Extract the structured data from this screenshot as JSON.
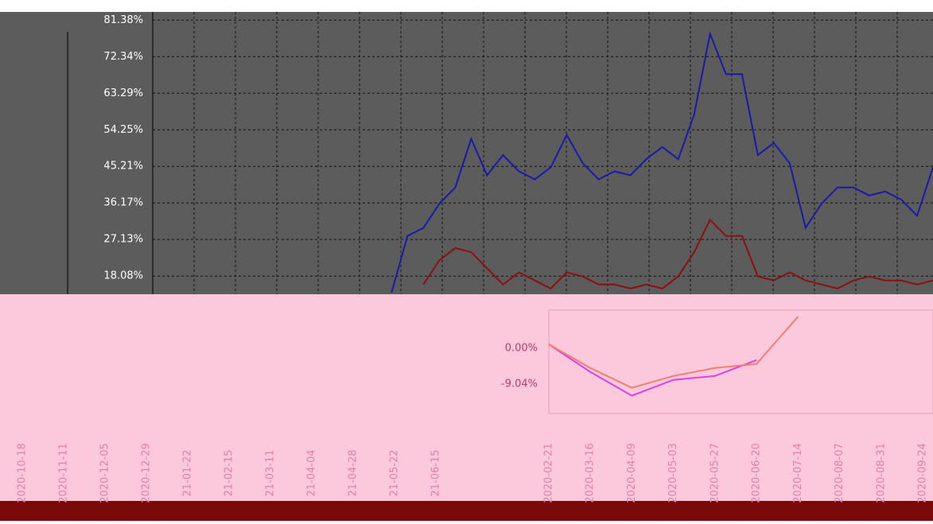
{
  "chart_data": [
    {
      "type": "line",
      "ylim": [
        13.6,
        83.4
      ],
      "yticks": [
        {
          "value": 81.38,
          "label": "81.38%"
        },
        {
          "value": 72.34,
          "label": "72.34%"
        },
        {
          "value": 63.29,
          "label": "63.29%"
        },
        {
          "value": 54.25,
          "label": "54.25%"
        },
        {
          "value": 45.21,
          "label": "45.21%"
        },
        {
          "value": 36.17,
          "label": "36.17%"
        },
        {
          "value": 27.13,
          "label": "27.13%"
        },
        {
          "value": 18.08,
          "label": "18.08%"
        }
      ],
      "grid": true,
      "series": [
        {
          "color": "#1a1aa8",
          "values": [
            null,
            null,
            null,
            null,
            null,
            null,
            null,
            null,
            null,
            null,
            null,
            null,
            null,
            null,
            null,
            14,
            28,
            30,
            36,
            40,
            52,
            43,
            48,
            44,
            42,
            45,
            53,
            46,
            42,
            44,
            43,
            47,
            50,
            47,
            58,
            78,
            68,
            68,
            48,
            51,
            46,
            30,
            36,
            40,
            40,
            38,
            39,
            37,
            33,
            45
          ]
        },
        {
          "color": "#8b1010",
          "values": [
            null,
            null,
            null,
            null,
            null,
            null,
            null,
            null,
            null,
            null,
            null,
            null,
            null,
            null,
            null,
            null,
            null,
            16,
            22,
            25,
            24,
            20,
            16,
            19,
            17,
            15,
            19,
            18,
            16,
            16,
            15,
            16,
            15,
            18,
            24,
            32,
            28,
            28,
            18,
            17,
            19,
            17,
            16,
            15,
            17,
            18,
            17,
            17,
            16,
            17
          ]
        }
      ]
    },
    {
      "type": "line",
      "ylim": [
        -16.5,
        9.64
      ],
      "yticks": [
        {
          "value": 0,
          "label": "0.00%"
        },
        {
          "value": -9.04,
          "label": "-9.04%"
        }
      ],
      "categories": [
        "2020-02-21",
        "2020-03-16",
        "2020-04-09",
        "2020-05-03",
        "2020-05-27",
        "2020-06-20",
        "2020-07-14",
        "2020-08-07",
        "2020-08-31",
        "2020-09-24"
      ],
      "series": [
        {
          "color": "#e040e0",
          "values": [
            1,
            -6,
            -12,
            -8,
            -7,
            -3,
            null,
            null,
            null,
            null
          ]
        },
        {
          "color": "#f08070",
          "values": [
            1,
            -5,
            -10,
            -7,
            -5,
            -4,
            8,
            null,
            null,
            null
          ]
        }
      ]
    },
    {
      "type": "line",
      "categories": [
        "2020-10-18",
        "2020-11-11",
        "2020-12-05",
        "2020-12-29",
        "21-01-22",
        "21-02-15",
        "21-03-11",
        "21-04-04",
        "21-04-28",
        "21-05-22",
        "21-06-15"
      ],
      "series": []
    }
  ]
}
